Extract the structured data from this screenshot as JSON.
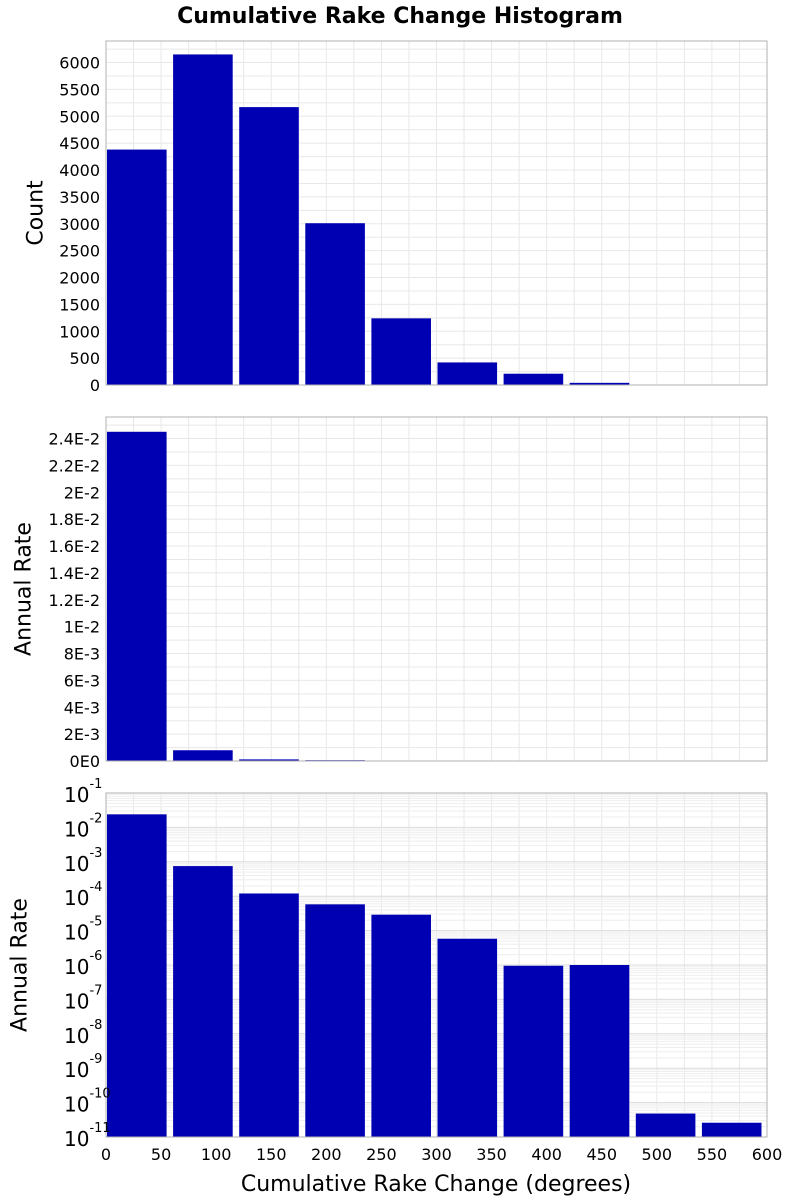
{
  "chart_data": [
    {
      "type": "bar",
      "panel": "count",
      "title": "Cumulative Rake Change Histogram",
      "ylabel": "Count",
      "ylim": [
        0,
        6400
      ],
      "yticks": [
        0,
        500,
        1000,
        1500,
        2000,
        2500,
        3000,
        3500,
        4000,
        4500,
        5000,
        5500,
        6000
      ],
      "ytick_labels": [
        "0",
        "500",
        "1000",
        "1500",
        "2000",
        "2500",
        "3000",
        "3500",
        "4000",
        "4500",
        "5000",
        "5500",
        "6000"
      ],
      "bins": [
        [
          0,
          55
        ],
        [
          60,
          115
        ],
        [
          120,
          175
        ],
        [
          180,
          235
        ],
        [
          240,
          295
        ],
        [
          300,
          355
        ],
        [
          360,
          415
        ],
        [
          420,
          475
        ],
        [
          480,
          535
        ],
        [
          540,
          595
        ]
      ],
      "values": [
        4380,
        6150,
        5170,
        3010,
        1240,
        420,
        210,
        40,
        0,
        0
      ],
      "color": "#0000b3",
      "grid": true
    },
    {
      "type": "bar",
      "panel": "rate-linear",
      "ylabel": "Annual Rate",
      "ylim": [
        0,
        0.0256
      ],
      "yticks": [
        0,
        0.002,
        0.004,
        0.006,
        0.008,
        0.01,
        0.012,
        0.014,
        0.016,
        0.018,
        0.02,
        0.022,
        0.024
      ],
      "ytick_labels": [
        "0E0",
        "2E-3",
        "4E-3",
        "6E-3",
        "8E-3",
        "1E-2",
        "1.2E-2",
        "1.4E-2",
        "1.6E-2",
        "1.8E-2",
        "2E-2",
        "2.2E-2",
        "2.4E-2"
      ],
      "bins": [
        [
          0,
          55
        ],
        [
          60,
          115
        ],
        [
          120,
          175
        ],
        [
          180,
          235
        ],
        [
          240,
          295
        ],
        [
          300,
          355
        ],
        [
          360,
          415
        ],
        [
          420,
          475
        ],
        [
          480,
          535
        ],
        [
          540,
          595
        ]
      ],
      "values": [
        0.0245,
        0.0008,
        0.00012,
        6e-05,
        3e-05,
        6e-06,
        1e-06,
        1e-06,
        1e-12,
        3e-13
      ],
      "color": "#0000b3",
      "grid": true
    },
    {
      "type": "bar",
      "panel": "rate-log",
      "ylabel": "Annual Rate",
      "yscale": "log",
      "ylim": [
        1e-11,
        0.1
      ],
      "ytick_exponents": [
        "-11",
        "-10",
        "-9",
        "-8",
        "-7",
        "-6",
        "-5",
        "-4",
        "-3",
        "-2",
        "-1"
      ],
      "ytick_base": "10",
      "xlabel": "Cumulative Rake Change (degrees)",
      "xlim": [
        0,
        600
      ],
      "xticks": [
        0,
        50,
        100,
        150,
        200,
        250,
        300,
        350,
        400,
        450,
        500,
        550,
        600
      ],
      "xtick_labels": [
        "0",
        "50",
        "100",
        "150",
        "200",
        "250",
        "300",
        "350",
        "400",
        "450",
        "500",
        "550",
        "600"
      ],
      "bins": [
        [
          0,
          55
        ],
        [
          60,
          115
        ],
        [
          120,
          175
        ],
        [
          180,
          235
        ],
        [
          240,
          295
        ],
        [
          300,
          355
        ],
        [
          360,
          415
        ],
        [
          420,
          475
        ],
        [
          480,
          535
        ],
        [
          540,
          595
        ]
      ],
      "values": [
        0.024,
        0.00075,
        0.00012,
        5.8e-05,
        2.9e-05,
        5.8e-06,
        9.5e-07,
        1e-06,
        4.8e-11,
        2.6e-11
      ],
      "color": "#0000b3",
      "grid": true
    }
  ]
}
